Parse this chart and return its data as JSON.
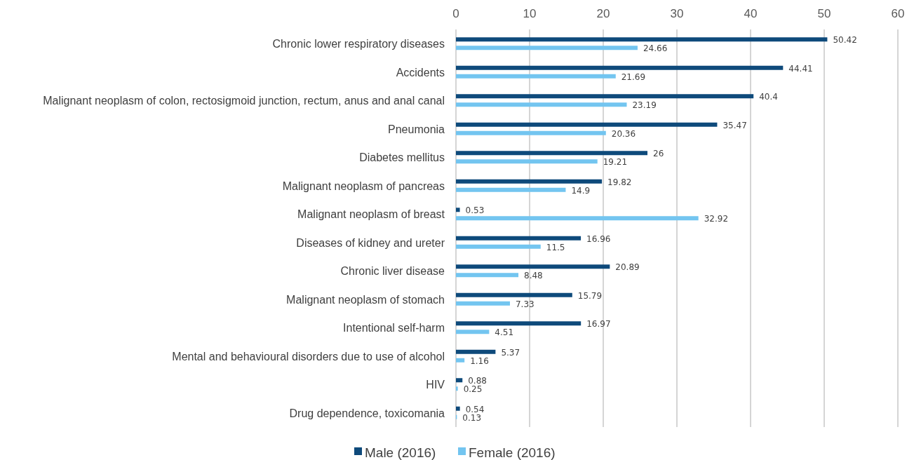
{
  "chart_data": {
    "type": "bar",
    "orientation": "horizontal",
    "categories": [
      "Chronic lower respiratory diseases",
      "Accidents",
      "Malignant neoplasm of colon, rectosigmoid junction, rectum, anus and anal canal",
      "Pneumonia",
      "Diabetes mellitus",
      "Malignant neoplasm of pancreas",
      "Malignant neoplasm of breast",
      "Diseases of kidney and ureter",
      "Chronic liver disease",
      "Malignant neoplasm of stomach",
      "Intentional self-harm",
      "Mental and behavioural disorders due to use of alcohol",
      "HIV",
      "Drug dependence, toxicomania"
    ],
    "series": [
      {
        "name": "Male (2016)",
        "color": "#0e4a7b",
        "values": [
          50.42,
          44.41,
          40.4,
          35.47,
          26,
          19.82,
          0.53,
          16.96,
          20.89,
          15.79,
          16.97,
          5.37,
          0.88,
          0.54
        ]
      },
      {
        "name": "Female (2016)",
        "color": "#73c5f0",
        "values": [
          24.66,
          21.69,
          23.19,
          20.36,
          19.21,
          14.9,
          32.92,
          11.5,
          8.48,
          7.33,
          4.51,
          1.16,
          0.25,
          0.13
        ]
      }
    ],
    "xlim": [
      0,
      60
    ],
    "xticks": [
      0,
      10,
      20,
      30,
      40,
      50,
      60
    ],
    "grid": "x",
    "data_labels": true,
    "legend": "bottom"
  }
}
